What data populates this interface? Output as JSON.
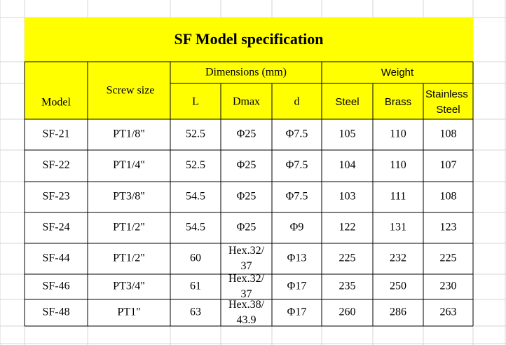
{
  "title": "SF Model specification",
  "headers": {
    "model": "Model",
    "screw_size": "Screw size",
    "dimensions": "Dimensions (mm)",
    "weight": "Weight",
    "columns": [
      "L",
      "Dmax",
      "d",
      "Steel",
      "Brass",
      "Stainless Steel"
    ]
  },
  "rows": [
    [
      "SF-21",
      "PT1/8\"",
      "52.5",
      "Φ25",
      "Φ7.5",
      "105",
      "110",
      "108"
    ],
    [
      "SF-22",
      "PT1/4\"",
      "52.5",
      "Φ25",
      "Φ7.5",
      "104",
      "110",
      "107"
    ],
    [
      "SF-23",
      "PT3/8\"",
      "54.5",
      "Φ25",
      "Φ7.5",
      "103",
      "111",
      "108"
    ],
    [
      "SF-24",
      "PT1/2\"",
      "54.5",
      "Φ25",
      "Φ9",
      "122",
      "131",
      "123"
    ],
    [
      "SF-44",
      "PT1/2\"",
      "60",
      "Hex.32/37",
      "Φ13",
      "225",
      "232",
      "225"
    ],
    [
      "SF-46",
      "PT3/4\"",
      "61",
      "Hex.32/37",
      "Φ17",
      "235",
      "250",
      "230"
    ],
    [
      "SF-48",
      "PT1\"",
      "63",
      "Hex.38/43.9",
      "Φ17",
      "260",
      "286",
      "263"
    ]
  ]
}
